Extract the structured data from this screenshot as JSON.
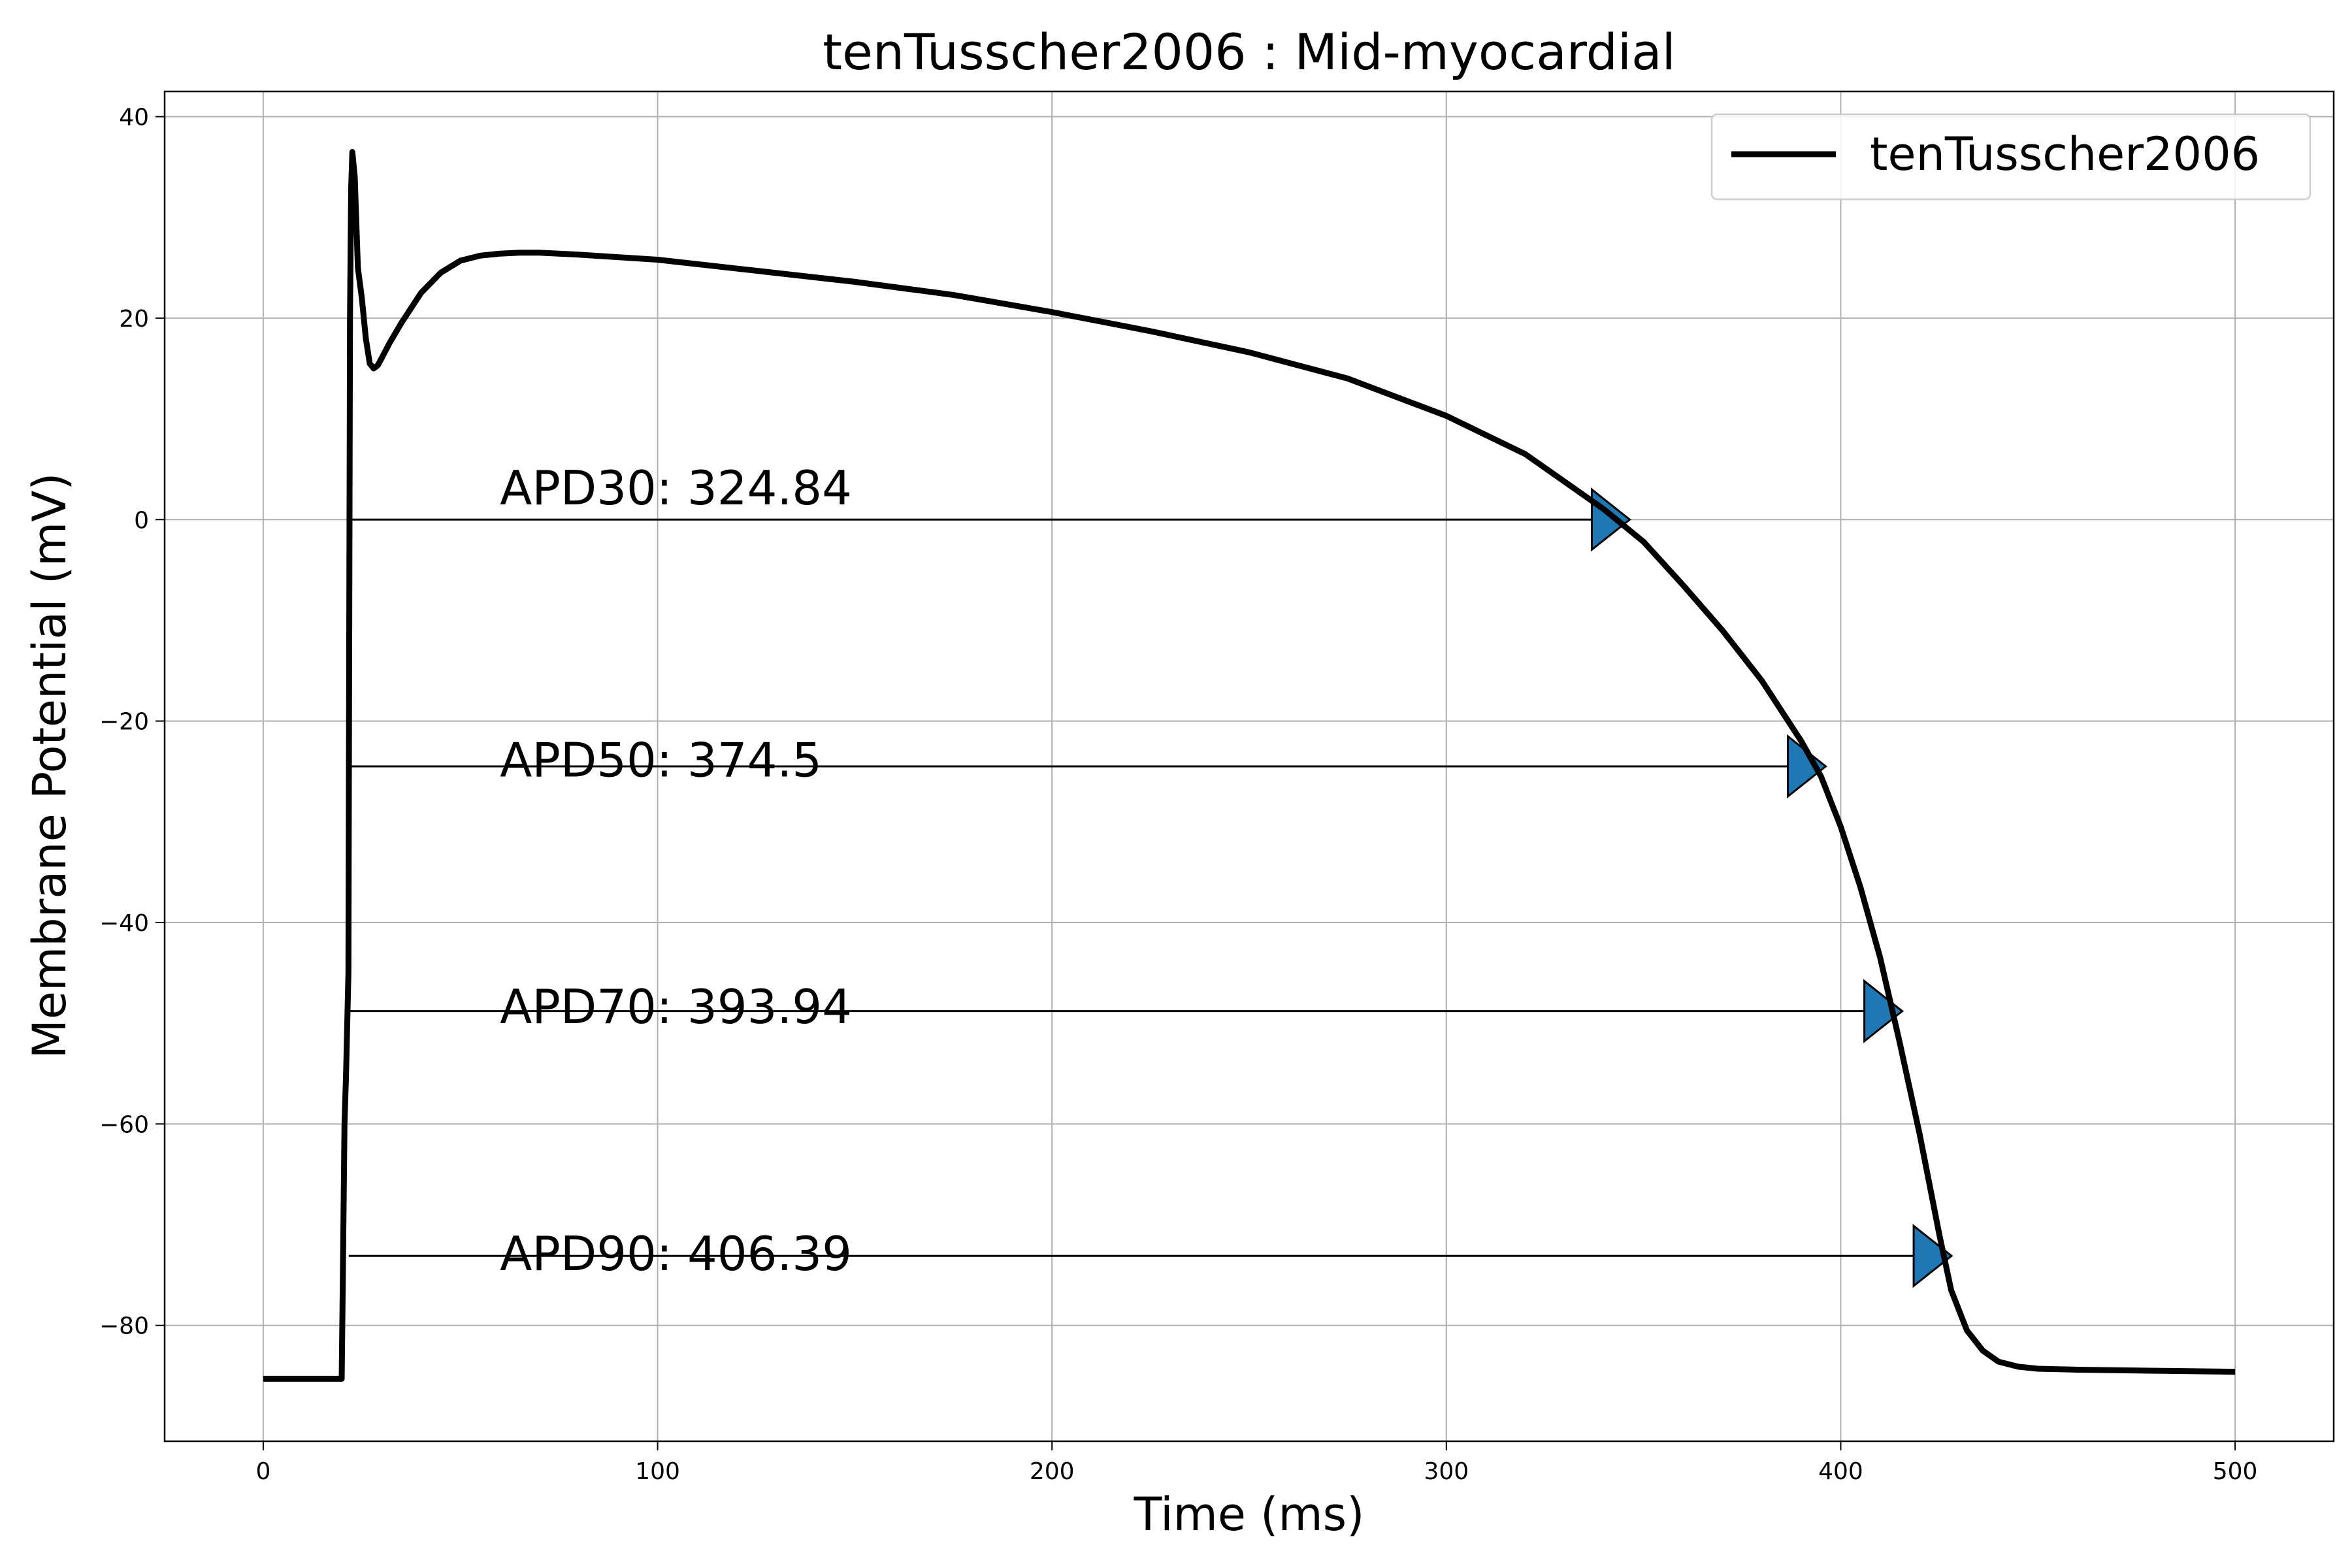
{
  "chart_data": {
    "type": "line",
    "title": "tenTusscher2006 : Mid-myocardial",
    "xlabel": "Time (ms)",
    "ylabel": "Membrane Potential (mV)",
    "xlim": [
      -25,
      525
    ],
    "ylim": [
      -91.5,
      42.5
    ],
    "xticks": [
      0,
      100,
      200,
      300,
      400,
      500
    ],
    "xtick_labels": [
      "0",
      "100",
      "200",
      "300",
      "400",
      "500"
    ],
    "yticks": [
      -80,
      -60,
      -40,
      -20,
      0,
      20,
      40
    ],
    "ytick_labels": [
      "−80",
      "−60",
      "−40",
      "−20",
      "0",
      "20",
      "40"
    ],
    "grid": true,
    "legend": {
      "position": "top-right",
      "entries": [
        "tenTusscher2006"
      ]
    },
    "series": [
      {
        "name": "tenTusscher2006",
        "color": "#000000",
        "x": [
          0,
          10,
          19.9,
          20.2,
          20.6,
          21.0,
          21.6,
          22.0,
          22.3,
          22.6,
          23.2,
          24.0,
          25.0,
          26.0,
          27.0,
          28.0,
          29.0,
          30.0,
          32.0,
          35.0,
          40.0,
          45.0,
          50.0,
          55.0,
          60.0,
          65.0,
          70.0,
          75.0,
          80.0,
          100.0,
          125.0,
          150.0,
          175.0,
          200.0,
          225.0,
          250.0,
          275.0,
          300.0,
          320.0,
          340.0,
          350.0,
          360.0,
          370.0,
          380.0,
          390.0,
          395.0,
          400.0,
          405.0,
          410.0,
          415.0,
          420.0,
          425.0,
          428.0,
          432.0,
          436.0,
          440.0,
          445.0,
          450.0,
          460.0,
          480.0,
          500.0
        ],
        "y": [
          -85.3,
          -85.3,
          -85.3,
          -75.0,
          -60.0,
          -55.0,
          -45.0,
          20.0,
          33.0,
          36.5,
          34.0,
          25.0,
          22.0,
          18.0,
          15.5,
          15.0,
          15.3,
          16.0,
          17.5,
          19.5,
          22.5,
          24.5,
          25.7,
          26.2,
          26.4,
          26.5,
          26.5,
          26.4,
          26.3,
          25.8,
          24.7,
          23.6,
          22.3,
          20.6,
          18.7,
          16.6,
          14.0,
          10.3,
          6.5,
          1.0,
          -2.2,
          -6.5,
          -11.0,
          -16.0,
          -22.0,
          -25.5,
          -30.5,
          -36.5,
          -43.5,
          -52.0,
          -61.0,
          -71.0,
          -76.5,
          -80.5,
          -82.5,
          -83.6,
          -84.1,
          -84.3,
          -84.4,
          -84.5,
          -84.6
        ]
      }
    ],
    "annotations": [
      {
        "label": "APD30: 324.84",
        "level_mv": 0.0,
        "start_ms": 21.7,
        "end_ms": 346.5,
        "text_x": 60,
        "text_y": 1.5
      },
      {
        "label": "APD50: 374.5",
        "level_mv": -24.5,
        "start_ms": 21.7,
        "end_ms": 396.2,
        "text_x": 60,
        "text_y": -25.5
      },
      {
        "label": "APD70: 393.94",
        "level_mv": -48.8,
        "start_ms": 21.7,
        "end_ms": 415.6,
        "text_x": 60,
        "text_y": -50.0
      },
      {
        "label": "APD90: 406.39",
        "level_mv": -73.1,
        "start_ms": 21.7,
        "end_ms": 428.1,
        "text_x": 60,
        "text_y": -74.5
      }
    ],
    "marker_color": "#1f77b4",
    "annotation_line_color": "#000000"
  }
}
